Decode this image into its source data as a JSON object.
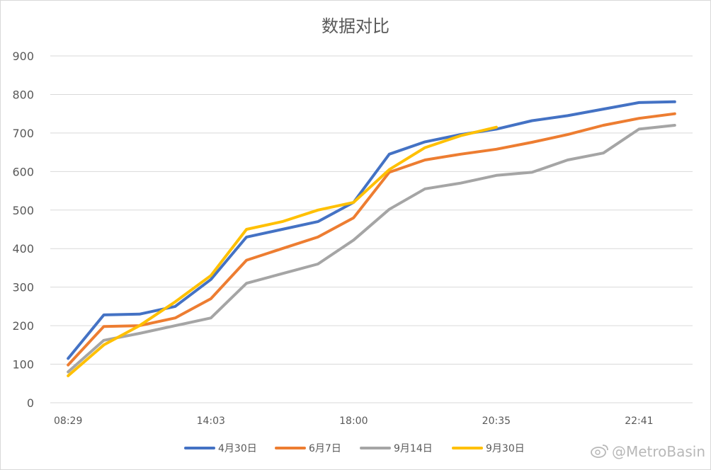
{
  "chart_data": {
    "type": "line",
    "title": "数据对比",
    "xlabel": "",
    "ylabel": "",
    "ylim": [
      0,
      900
    ],
    "yticks": [
      0,
      100,
      200,
      300,
      400,
      500,
      600,
      700,
      800,
      900
    ],
    "grid": true,
    "legend_position": "bottom",
    "x_tick_labels": [
      "08:29",
      "14:03",
      "18:00",
      "20:35",
      "22:41"
    ],
    "x_tick_label_positions": [
      0,
      4,
      8,
      12,
      16
    ],
    "n_points": 18,
    "series": [
      {
        "name": "4月30日",
        "color": "#4472C4",
        "values": [
          115,
          228,
          230,
          250,
          320,
          430,
          450,
          470,
          520,
          645,
          677,
          696,
          710,
          732,
          745,
          762,
          779,
          781
        ]
      },
      {
        "name": "6月7日",
        "color": "#ED7D31",
        "values": [
          98,
          198,
          200,
          220,
          270,
          370,
          400,
          430,
          480,
          598,
          630,
          645,
          658,
          676,
          696,
          720,
          738,
          750
        ]
      },
      {
        "name": "9月14日",
        "color": "#A5A5A5",
        "values": [
          80,
          162,
          180,
          200,
          220,
          310,
          335,
          360,
          422,
          502,
          555,
          570,
          590,
          598,
          630,
          648,
          710,
          720
        ]
      },
      {
        "name": "9月30日",
        "color": "#FFC000",
        "values": [
          70,
          150,
          200,
          262,
          330,
          450,
          470,
          500,
          520,
          605,
          662,
          693,
          715
        ]
      }
    ]
  },
  "watermark": "@MetroBasin"
}
